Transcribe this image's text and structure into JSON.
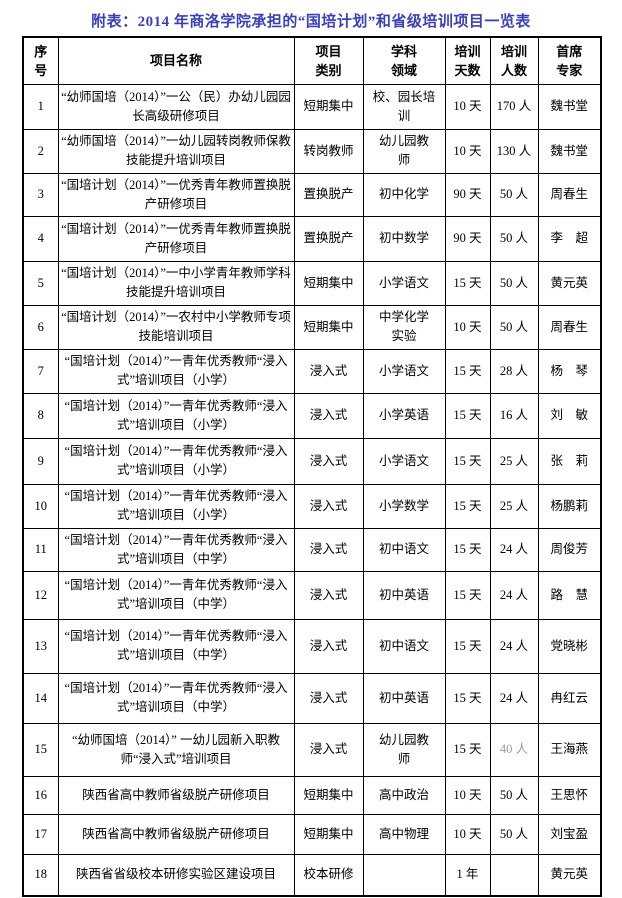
{
  "page": {
    "title": "附表：2014 年商洛学院承担的“国培计划”和省级培训项目一览表",
    "title_color": "#3a40bd",
    "text_color": "#000000",
    "muted_value_color": "#9a9a9a",
    "border_color": "#000000",
    "background_color": "#ffffff"
  },
  "table": {
    "headers": [
      "序\n号",
      "项目名称",
      "项目\n类别",
      "学科\n领域",
      "培训\n天数",
      "培训\n人数",
      "首席\n专家"
    ],
    "rows": [
      {
        "num": "1",
        "name": "“幼师国培（2014）”一公（民）办幼儿园园长高级研修项目",
        "category": "短期集中",
        "subject": "校、园长培\n训",
        "days": "10 天",
        "count": "170 人",
        "expert": "魏书堂"
      },
      {
        "num": "2",
        "name": "“幼师国培（2014）”一幼儿园转岗教师保教技能提升培训项目",
        "category": "转岗教师",
        "subject": "幼儿园教\n师",
        "days": "10 天",
        "count": "130 人",
        "expert": "魏书堂"
      },
      {
        "num": "3",
        "name": "“国培计划（2014）”一优秀青年教师置换脱产研修项目",
        "category": "置换脱产",
        "subject": "初中化学",
        "days": "90 天",
        "count": "50 人",
        "expert": "周春生"
      },
      {
        "num": "4",
        "name": "“国培计划（2014）”一优秀青年教师置换脱产研修项目",
        "category": "置换脱产",
        "subject": "初中数学",
        "days": "90 天",
        "count": "50 人",
        "expert": "李　超"
      },
      {
        "num": "5",
        "name": "“国培计划（2014）”一中小学青年教师学科技能提升培训项目",
        "category": "短期集中",
        "subject": "小学语文",
        "days": "15 天",
        "count": "50 人",
        "expert": "黄元英"
      },
      {
        "num": "6",
        "name": "“国培计划（2014）”一农村中小学教师专项技能培训项目",
        "category": "短期集中",
        "subject": "中学化学\n实验",
        "days": "10 天",
        "count": "50 人",
        "expert": "周春生"
      },
      {
        "num": "7",
        "name": "“国培计划（2014）”一青年优秀教师“浸入式”培训项目（小学）",
        "category": "浸入式",
        "subject": "小学语文",
        "days": "15 天",
        "count": "28 人",
        "expert": "杨　琴"
      },
      {
        "num": "8",
        "name": "“国培计划（2014）”一青年优秀教师“浸入式”培训项目（小学）",
        "category": "浸入式",
        "subject": "小学英语",
        "days": "15 天",
        "count": "16 人",
        "expert": "刘　敏"
      },
      {
        "num": "9",
        "name": "“国培计划（2014）”一青年优秀教师“浸入式”培训项目（小学）",
        "category": "浸入式",
        "subject": "小学语文",
        "days": "15 天",
        "count": "25 人",
        "expert": "张　莉"
      },
      {
        "num": "10",
        "name": "“国培计划（2014）”一青年优秀教师“浸入式”培训项目（小学）",
        "category": "浸入式",
        "subject": "小学数学",
        "days": "15 天",
        "count": "25 人",
        "expert": "杨鹏莉"
      },
      {
        "num": "11",
        "name": "“国培计划（2014）”一青年优秀教师“浸入式”培训项目（中学）",
        "category": "浸入式",
        "subject": "初中语文",
        "days": "15 天",
        "count": "24 人",
        "expert": "周俊芳"
      },
      {
        "num": "12",
        "name": "“国培计划（2014）”一青年优秀教师“浸入式”培训项目（中学）",
        "category": "浸入式",
        "subject": "初中英语",
        "days": "15 天",
        "count": "24 人",
        "expert": "路　慧"
      },
      {
        "num": "13",
        "name": "“国培计划（2014）”一青年优秀教师“浸入式”培训项目（中学）",
        "category": "浸入式",
        "subject": "初中语文",
        "days": "15 天",
        "count": "24 人",
        "expert": "党晓彬"
      },
      {
        "num": "14",
        "name": "“国培计划（2014）”一青年优秀教师“浸入式”培训项目（中学）",
        "category": "浸入式",
        "subject": "初中英语",
        "days": "15 天",
        "count": "24 人",
        "expert": "冉红云"
      },
      {
        "num": "15",
        "name": "“幼师国培（2014）” 一幼儿园新入职教师“浸入式”培训项目",
        "category": "浸入式",
        "subject": "幼儿园教\n师",
        "days": "15 天",
        "count": "40 人",
        "expert": "王海燕",
        "muted": [
          "count"
        ]
      },
      {
        "num": "16",
        "name": "陕西省高中教师省级脱产研修项目",
        "category": "短期集中",
        "subject": "高中政治",
        "days": "10 天",
        "count": "50 人",
        "expert": "王思怀"
      },
      {
        "num": "17",
        "name": "陕西省高中教师省级脱产研修项目",
        "category": "短期集中",
        "subject": "高中物理",
        "days": "10 天",
        "count": "50 人",
        "expert": "刘宝盈"
      },
      {
        "num": "18",
        "name": "陕西省省级校本研修实验区建设项目",
        "category": "校本研修",
        "subject": "",
        "days": "1 年",
        "count": "",
        "expert": "黄元英"
      }
    ]
  }
}
